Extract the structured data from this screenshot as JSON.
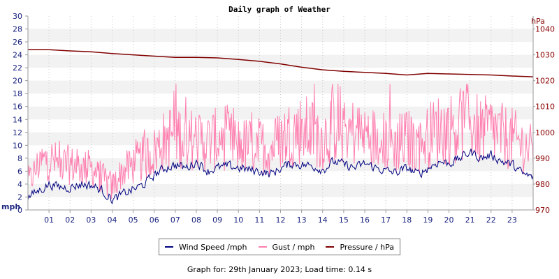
{
  "chart_data": {
    "type": "line",
    "title": "Daily graph of Weather",
    "y_left": {
      "unit": "mph",
      "min": 0,
      "max": 30,
      "ticks": [
        0,
        2,
        4,
        6,
        8,
        10,
        12,
        14,
        16,
        18,
        20,
        22,
        24,
        26,
        28,
        30
      ]
    },
    "y_right": {
      "unit": "hPa",
      "min": 970,
      "max": 1045,
      "ticks": [
        970,
        980,
        990,
        1000,
        1010,
        1020,
        1030,
        1040
      ]
    },
    "x": {
      "min": 0,
      "max": 24,
      "tick_labels": [
        "01",
        "02",
        "03",
        "04",
        "05",
        "06",
        "07",
        "08",
        "09",
        "10",
        "11",
        "12",
        "13",
        "14",
        "15",
        "16",
        "17",
        "18",
        "19",
        "20",
        "21",
        "22",
        "23"
      ]
    },
    "grid": true,
    "legend": "bottom-center",
    "series": [
      {
        "name": "Wind Speed /mph",
        "color": "#000080",
        "axis": "left",
        "x": [
          0,
          0.5,
          1,
          1.5,
          2,
          2.5,
          3,
          3.5,
          4,
          4.5,
          5,
          5.5,
          6,
          6.5,
          7,
          7.5,
          8,
          8.5,
          9,
          9.5,
          10,
          10.5,
          11,
          11.5,
          12,
          12.5,
          13,
          13.5,
          14,
          14.5,
          15,
          15.5,
          16,
          16.5,
          17,
          17.5,
          18,
          18.5,
          19,
          19.5,
          20,
          20.5,
          21,
          21.5,
          22,
          22.5,
          23,
          23.5,
          24
        ],
        "y": [
          2,
          3,
          4,
          3.5,
          3.5,
          4,
          3.8,
          3,
          1.5,
          2.5,
          3.2,
          4,
          5.5,
          6.5,
          7,
          6.5,
          7.5,
          6,
          6.5,
          6.8,
          6.5,
          6.2,
          6,
          5.5,
          6.5,
          7.2,
          7,
          6.8,
          6.2,
          7.5,
          7,
          6.5,
          7.2,
          6.5,
          6,
          5.8,
          6.5,
          5.5,
          6.5,
          7.5,
          7.2,
          8,
          9,
          8,
          8.5,
          7.5,
          7,
          5.5,
          5
        ]
      },
      {
        "name": "Gust / mph",
        "color": "#ff80b0",
        "axis": "left",
        "x": [
          0,
          0.5,
          1,
          1.5,
          2,
          2.5,
          3,
          3.5,
          4,
          4.5,
          5,
          5.5,
          6,
          6.5,
          7,
          7.5,
          8,
          8.5,
          9,
          9.5,
          10,
          10.5,
          11,
          11.5,
          12,
          12.5,
          13,
          13.5,
          14,
          14.5,
          15,
          15.5,
          16,
          16.5,
          17,
          17.5,
          18,
          18.5,
          19,
          19.5,
          20,
          20.5,
          21,
          21.5,
          22,
          22.5,
          23,
          23.5,
          24
        ],
        "y": [
          4,
          7,
          8,
          7,
          7,
          6.5,
          6.5,
          5,
          3.5,
          6,
          7,
          8,
          9,
          11,
          12,
          11,
          11,
          10.5,
          11,
          10.8,
          10,
          10,
          10,
          9.5,
          11,
          12,
          12.5,
          12,
          11,
          13,
          12.5,
          12,
          12,
          11,
          10.5,
          10,
          11,
          10,
          11.5,
          12.5,
          12.5,
          13,
          14,
          12,
          12.5,
          11.5,
          11,
          10,
          9
        ]
      },
      {
        "name": "Pressure / hPa",
        "color": "#800000",
        "axis": "right",
        "x": [
          0,
          1,
          2,
          3,
          4,
          5,
          6,
          7,
          8,
          9,
          10,
          11,
          12,
          13,
          14,
          15,
          16,
          17,
          18,
          19,
          20,
          21,
          22,
          23,
          24
        ],
        "y": [
          1032,
          1032,
          1031.5,
          1031.2,
          1030.5,
          1030,
          1029.5,
          1029,
          1029,
          1028.8,
          1028.2,
          1027.5,
          1026.5,
          1025.2,
          1024.2,
          1023.6,
          1023.2,
          1022.8,
          1022.2,
          1022.8,
          1022.6,
          1022.4,
          1022.2,
          1021.8,
          1021.5
        ]
      }
    ]
  },
  "footer": {
    "text": "Graph for: 29th January 2023; Load time: 0.14 s"
  }
}
